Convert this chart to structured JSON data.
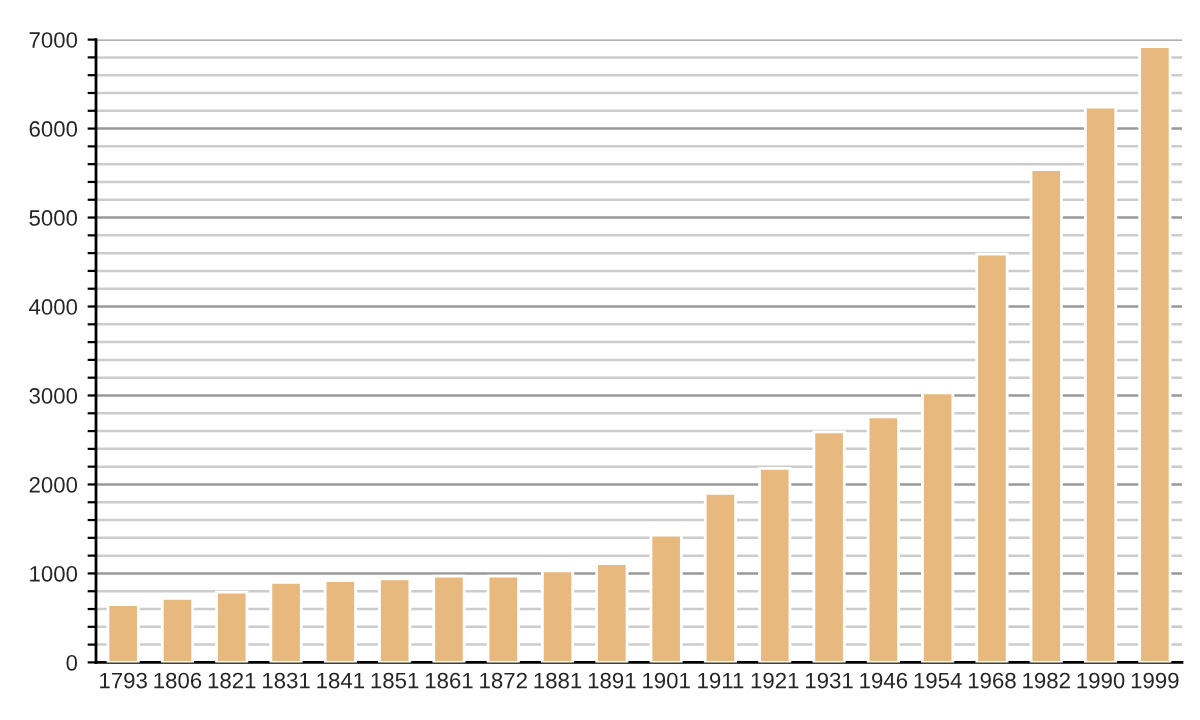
{
  "chart_data": {
    "type": "bar",
    "categories": [
      "1793",
      "1806",
      "1821",
      "1831",
      "1841",
      "1851",
      "1861",
      "1872",
      "1881",
      "1891",
      "1901",
      "1911",
      "1921",
      "1931",
      "1946",
      "1954",
      "1968",
      "1982",
      "1990",
      "1999"
    ],
    "values": [
      650,
      720,
      790,
      900,
      920,
      940,
      970,
      970,
      1030,
      1110,
      1430,
      1900,
      2180,
      2590,
      2760,
      3030,
      4590,
      5540,
      6240,
      6920
    ],
    "color": "#e8b97e",
    "ylim": [
      0,
      7000
    ],
    "yticks": [
      0,
      {
        "value": 200,
        "label": null
      },
      {
        "value": 400,
        "label": null
      },
      {
        "value": 600,
        "label": null
      },
      {
        "value": 800,
        "label": null
      },
      1000,
      {
        "value": 1200,
        "label": null
      },
      {
        "value": 1400,
        "label": null
      },
      {
        "value": 1600,
        "label": null
      },
      {
        "value": 1800,
        "label": null
      },
      2000,
      {
        "value": 2200,
        "label": null
      },
      {
        "value": 2400,
        "label": null
      },
      {
        "value": 2600,
        "label": null
      },
      {
        "value": 2800,
        "label": null
      },
      3000,
      {
        "value": 3200,
        "label": null
      },
      {
        "value": 3400,
        "label": null
      },
      {
        "value": 3600,
        "label": null
      },
      {
        "value": 3800,
        "label": null
      },
      4000,
      {
        "value": 4200,
        "label": null
      },
      {
        "value": 4400,
        "label": null
      },
      {
        "value": 4600,
        "label": null
      },
      {
        "value": 4800,
        "label": null
      },
      5000,
      {
        "value": 5200,
        "label": null
      },
      {
        "value": 5400,
        "label": null
      },
      {
        "value": 5600,
        "label": null
      },
      {
        "value": 5800,
        "label": null
      },
      6000,
      {
        "value": 6200,
        "label": null
      },
      {
        "value": 6400,
        "label": null
      },
      {
        "value": 6600,
        "label": null
      },
      {
        "value": 6800,
        "label": null
      },
      7000
    ],
    "grid": "y"
  }
}
